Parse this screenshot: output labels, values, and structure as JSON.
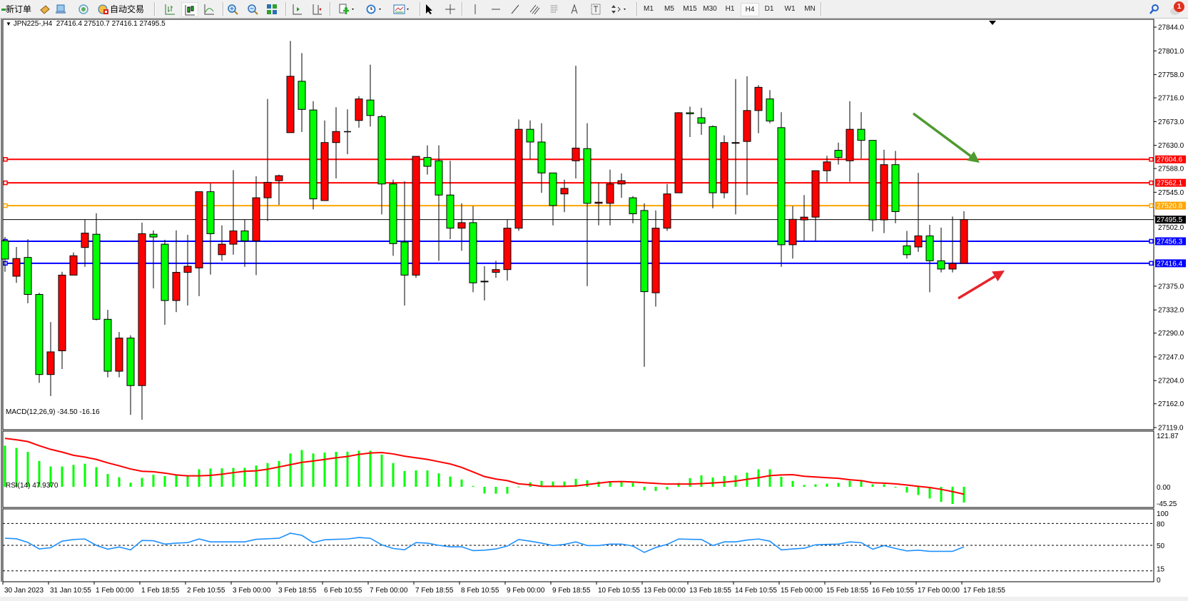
{
  "toolbar": {
    "new_order_label": "新订单",
    "auto_trading_label": "自动交易",
    "timeframes": [
      "M1",
      "M5",
      "M15",
      "M30",
      "H1",
      "H4",
      "D1",
      "W1",
      "MN"
    ],
    "active_timeframe": "H4",
    "notification_count": "1",
    "icons": [
      "new-order-icon",
      "market-watch-icon",
      "data-window-icon",
      "navigator-icon",
      "auto-trading-icon",
      "bar-chart-icon",
      "candlestick-icon",
      "line-chart-icon",
      "zoom-in-icon",
      "zoom-out-icon",
      "tile-windows-icon",
      "auto-scroll-icon",
      "chart-shift-icon",
      "indicators-icon",
      "periods-icon",
      "templates-icon",
      "cursor-icon",
      "crosshair-icon",
      "vertical-line-icon",
      "horizontal-line-icon",
      "trendline-icon",
      "equidistant-channel-icon",
      "fibonacci-icon",
      "text-icon",
      "text-label-icon",
      "arrows-icon",
      "search-icon",
      "notification-icon"
    ]
  },
  "chart": {
    "header": "JPN225-,H4  27416.4 27510.7 27416.1 27495.5",
    "macd_label": "MACD(12,26,9) -34.50 -16.16",
    "rsi_label": "RSI(14) 47.9370",
    "colors": {
      "bull": "#ff0000",
      "bear": "#00ff00",
      "macd_hist": "#00ff00",
      "macd_signal": "#ff0000",
      "rsi": "#1e90ff",
      "green_arrow": "#4f9a2f",
      "red_arrow": "#e8232a"
    },
    "price_levels": [
      {
        "value": "27604.6",
        "color": "#ff0000"
      },
      {
        "value": "27562.1",
        "color": "#ff0000"
      },
      {
        "value": "27520.8",
        "color": "#ffa500"
      },
      {
        "value": "27495.5",
        "color": "#000000",
        "bid": true
      },
      {
        "value": "27456.3",
        "color": "#0000ff"
      },
      {
        "value": "27416.4",
        "color": "#0000ff"
      }
    ],
    "annotations": [
      {
        "type": "arrow",
        "direction": "down-right",
        "color": "#4f9a2f"
      },
      {
        "type": "arrow",
        "direction": "up-right",
        "color": "#e8232a"
      }
    ]
  },
  "chart_data": {
    "type": "candlestick",
    "symbol": "JPN225-",
    "timeframe": "H4",
    "price_axis_ticks": [
      "27844.0",
      "27801.0",
      "27758.0",
      "27716.0",
      "27673.0",
      "27630.0",
      "27588.0",
      "27545.0",
      "27502.0",
      "27375.0",
      "27332.0",
      "27290.0",
      "27247.0",
      "27204.0",
      "27162.0",
      "27119.0"
    ],
    "ylim": [
      27119.0,
      27844.0
    ],
    "time_labels": [
      "30 Jan 2023",
      "31 Jan 10:55",
      "1 Feb 00:00",
      "1 Feb 18:55",
      "2 Feb 10:55",
      "3 Feb 00:00",
      "3 Feb 18:55",
      "6 Feb 10:55",
      "7 Feb 00:00",
      "7 Feb 18:55",
      "8 Feb 10:55",
      "9 Feb 00:00",
      "9 Feb 18:55",
      "10 Feb 10:55",
      "13 Feb 00:00",
      "13 Feb 18:55",
      "14 Feb 10:55",
      "15 Feb 00:00",
      "15 Feb 18:55",
      "16 Feb 10:55",
      "17 Feb 00:00",
      "17 Feb 18:55"
    ],
    "ohlc": [
      [
        27457,
        27464,
        27401,
        27424
      ],
      [
        27393,
        27446,
        27381,
        27425
      ],
      [
        27427,
        27460,
        27344,
        27360
      ],
      [
        27360,
        27363,
        27200,
        27215
      ],
      [
        27215,
        27310,
        27176,
        27256
      ],
      [
        27258,
        27401,
        27225,
        27395
      ],
      [
        27395,
        27436,
        27395,
        27430
      ],
      [
        27445,
        27496,
        27410,
        27471
      ],
      [
        27469,
        27507,
        27313,
        27315
      ],
      [
        27315,
        27332,
        27210,
        27221
      ],
      [
        27221,
        27292,
        27210,
        27281
      ],
      [
        27281,
        27286,
        27142,
        27195
      ],
      [
        27195,
        27490,
        27133,
        27470
      ],
      [
        27469,
        27476,
        27371,
        27464
      ],
      [
        27451,
        27459,
        27305,
        27349
      ],
      [
        27349,
        27476,
        27328,
        27400
      ],
      [
        27400,
        27468,
        27340,
        27411
      ],
      [
        27408,
        27546,
        27357,
        27546
      ],
      [
        27546,
        27561,
        27396,
        27470
      ],
      [
        27432,
        27485,
        27421,
        27451
      ],
      [
        27451,
        27585,
        27432,
        27475
      ],
      [
        27475,
        27496,
        27410,
        27457
      ],
      [
        27457,
        27574,
        27395,
        27535
      ],
      [
        27535,
        27714,
        27493,
        27563
      ],
      [
        27566,
        27577,
        27522,
        27575
      ],
      [
        27653,
        27819,
        27653,
        27755
      ],
      [
        27746,
        27797,
        27654,
        27695
      ],
      [
        27694,
        27710,
        27514,
        27533
      ],
      [
        27530,
        27675,
        27530,
        27635
      ],
      [
        27635,
        27699,
        27570,
        27655
      ],
      [
        27655,
        27695,
        27614,
        27655
      ],
      [
        27675,
        27719,
        27662,
        27714
      ],
      [
        27712,
        27776,
        27664,
        27684
      ],
      [
        27682,
        27685,
        27505,
        27560
      ],
      [
        27560,
        27568,
        27430,
        27452
      ],
      [
        27455,
        27565,
        27340,
        27395
      ],
      [
        27395,
        27610,
        27390,
        27610
      ],
      [
        27608,
        27630,
        27577,
        27592
      ],
      [
        27602,
        27630,
        27421,
        27540
      ],
      [
        27540,
        27602,
        27460,
        27480
      ],
      [
        27480,
        27525,
        27439,
        27490
      ],
      [
        27490,
        27520,
        27364,
        27381
      ],
      [
        27384,
        27411,
        27349,
        27383
      ],
      [
        27400,
        27421,
        27390,
        27405
      ],
      [
        27405,
        27496,
        27385,
        27480
      ],
      [
        27480,
        27677,
        27475,
        27659
      ],
      [
        27659,
        27675,
        27605,
        27636
      ],
      [
        27636,
        27670,
        27544,
        27580
      ],
      [
        27580,
        27580,
        27485,
        27521
      ],
      [
        27542,
        27568,
        27509,
        27552
      ],
      [
        27602,
        27774,
        27570,
        27625
      ],
      [
        27624,
        27670,
        27375,
        27525
      ],
      [
        27525,
        27562,
        27485,
        27527
      ],
      [
        27525,
        27586,
        27485,
        27560
      ],
      [
        27560,
        27579,
        27535,
        27566
      ],
      [
        27535,
        27538,
        27489,
        27506
      ],
      [
        27512,
        27525,
        27229,
        27365
      ],
      [
        27363,
        27512,
        27338,
        27480
      ],
      [
        27480,
        27560,
        27475,
        27542
      ],
      [
        27544,
        27690,
        27544,
        27689
      ],
      [
        27689,
        27700,
        27645,
        27687
      ],
      [
        27680,
        27698,
        27649,
        27670
      ],
      [
        27664,
        27666,
        27516,
        27544
      ],
      [
        27544,
        27648,
        27534,
        27635
      ],
      [
        27634,
        27750,
        27505,
        27635
      ],
      [
        27637,
        27755,
        27540,
        27693
      ],
      [
        27693,
        27739,
        27652,
        27735
      ],
      [
        27714,
        27730,
        27670,
        27674
      ],
      [
        27662,
        27690,
        27410,
        27450
      ],
      [
        27450,
        27520,
        27425,
        27496
      ],
      [
        27495,
        27540,
        27457,
        27500
      ],
      [
        27500,
        27584,
        27457,
        27584
      ],
      [
        27584,
        27611,
        27564,
        27600
      ],
      [
        27621,
        27635,
        27595,
        27608
      ],
      [
        27602,
        27710,
        27564,
        27659
      ],
      [
        27659,
        27690,
        27606,
        27639
      ],
      [
        27639,
        27639,
        27474,
        27495
      ],
      [
        27495,
        27622,
        27471,
        27595
      ],
      [
        27595,
        27620,
        27489,
        27510
      ],
      [
        27448,
        27475,
        27425,
        27432
      ],
      [
        27446,
        27580,
        27437,
        27466
      ],
      [
        27466,
        27486,
        27364,
        27421
      ],
      [
        27421,
        27481,
        27400,
        27406
      ],
      [
        27406,
        27501,
        27400,
        27416
      ],
      [
        27416.4,
        27510.7,
        27416.1,
        27495.5
      ]
    ],
    "macd": {
      "params": "12,26,9",
      "axis_labels": [
        "121.87",
        "0.00",
        "-45.25"
      ],
      "ylim": [
        -45.25,
        121.87
      ],
      "histogram": [
        90,
        85,
        76.5,
        56.5,
        44.5,
        44.5,
        48,
        50.5,
        43,
        28,
        21,
        9,
        19.5,
        26.5,
        23.5,
        25,
        23.5,
        38.5,
        40,
        40.5,
        41.5,
        41.5,
        46.5,
        52,
        56.5,
        73,
        80.5,
        73,
        75,
        76.5,
        77,
        79,
        79,
        70.5,
        52,
        34.5,
        36,
        36,
        29.5,
        22.5,
        16,
        2,
        -14.5,
        -15,
        -15,
        0.5,
        10,
        13,
        11.5,
        11.5,
        17.5,
        14.5,
        11.5,
        10,
        11.5,
        8.5,
        -7.5,
        -9,
        -6,
        8.5,
        19,
        25,
        20.5,
        23.5,
        25,
        31,
        38.5,
        38.5,
        22,
        13,
        4,
        5.5,
        7,
        8.5,
        13,
        13,
        5.5,
        5.5,
        -1,
        -12.5,
        -18,
        -25.5,
        -33,
        -37.5,
        -34.5
      ],
      "signal": [
        106,
        103,
        99,
        90,
        82,
        76,
        69,
        65,
        60,
        52.5,
        46,
        39,
        34,
        33,
        30,
        26,
        24,
        24,
        25,
        27.5,
        31,
        34,
        35,
        38.5,
        43.5,
        48.5,
        53.5,
        56.5,
        60,
        63.5,
        66.5,
        71,
        74,
        75,
        72,
        67,
        63.5,
        60,
        55,
        50,
        42.5,
        32.5,
        22.5,
        17,
        13.5,
        6.5,
        4.5,
        1,
        1,
        1,
        2,
        5,
        8,
        11,
        11.5,
        10.5,
        9,
        7.5,
        6,
        6,
        6,
        7,
        8.5,
        10,
        12.5,
        16.5,
        20,
        24.5,
        26,
        26.5,
        23,
        21.5,
        20,
        18.5,
        15.5,
        13.5,
        9,
        8,
        6.5,
        4,
        1,
        -1.5,
        -5.5,
        -10.5,
        -16.16
      ]
    },
    "rsi": {
      "period": 14,
      "axis_labels": [
        "100",
        "80",
        "50",
        "15",
        "0"
      ],
      "levels": [
        80,
        50,
        15
      ],
      "ylim": [
        0,
        100
      ],
      "values": [
        59.7,
        59,
        54,
        45,
        46.7,
        55.7,
        58,
        58.7,
        50,
        44.7,
        47.7,
        43.7,
        56.7,
        56.3,
        51.7,
        53,
        53.7,
        58.7,
        54.7,
        54.7,
        54.7,
        54.7,
        58.3,
        59,
        59.7,
        66.7,
        63.7,
        53.7,
        57.7,
        58.3,
        58.7,
        60.7,
        59.7,
        50.7,
        45.7,
        44,
        53.7,
        53,
        50,
        48,
        48,
        42.7,
        43.3,
        45,
        49,
        58,
        55.7,
        53,
        49.7,
        51.3,
        54.7,
        49.7,
        49.7,
        51.7,
        51.7,
        49,
        40.3,
        47,
        51.3,
        58.7,
        58.3,
        58,
        49.7,
        54.7,
        54.7,
        57.3,
        58.7,
        55.7,
        43.7,
        45,
        46,
        50.7,
        51.3,
        51.7,
        54.7,
        53.7,
        44.7,
        49.7,
        45.7,
        42.3,
        43.3,
        41.7,
        41.7,
        41.7,
        47.937
      ]
    }
  }
}
